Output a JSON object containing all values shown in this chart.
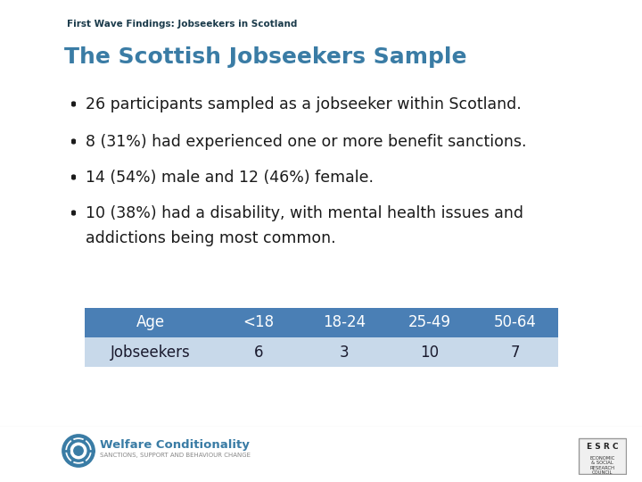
{
  "header_text": "First Wave Findings: Jobseekers in Scotland",
  "title": "The Scottish Jobseekers Sample",
  "title_color": "#3A7CA5",
  "bullet_points": [
    "26 participants sampled as a jobseeker within Scotland.",
    "8 (31%) had experienced one or more benefit sanctions.",
    "14 (54%) male and 12 (46%) female.",
    "10 (38%) had a disability, with mental health issues and",
    "addictions being most common."
  ],
  "bullet_flags": [
    true,
    true,
    true,
    true,
    false
  ],
  "table_header_row": [
    "Age",
    "<18",
    "18-24",
    "25-49",
    "50-64"
  ],
  "table_data_row": [
    "Jobseekers",
    "6",
    "3",
    "10",
    "7"
  ],
  "table_header_bg": "#4A7FB5",
  "table_data_bg": "#C8D9EA",
  "table_text_color_header": "#FFFFFF",
  "table_text_color_data": "#1A1A2E",
  "footer_line_color": "#BBBBBB",
  "background_color": "#FFFFFF",
  "header_font_color": "#1A3A4A",
  "bullet_font_color": "#1A1A1A",
  "bullet_font_size": 12.5,
  "title_font_size": 18,
  "header_font_size": 7.5,
  "table_font_size": 12,
  "welfare_color": "#3A7CA5",
  "welfare_subtitle_color": "#888888"
}
